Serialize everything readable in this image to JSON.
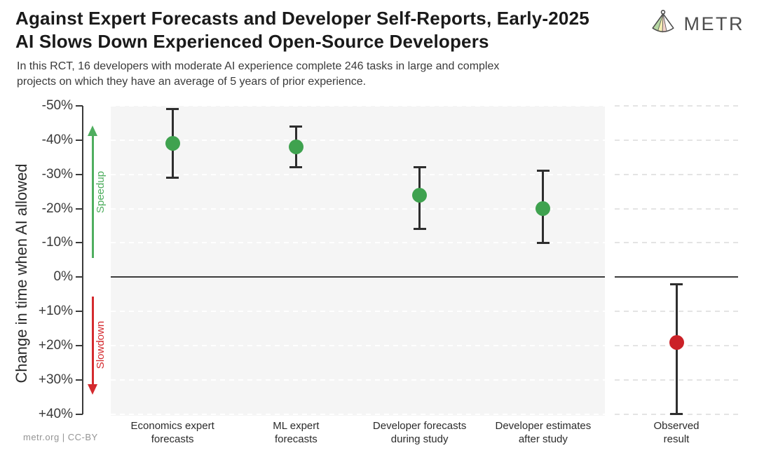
{
  "header": {
    "title": "Against Expert Forecasts and Developer Self-Reports, Early-2025\nAI Slows Down Experienced Open-Source Developers",
    "subtitle": "In this RCT, 16 developers with moderate AI experience complete 246 tasks in large and complex\nprojects on which they have an average of 5 years of prior experience.",
    "logo_text": "METR"
  },
  "footer": {
    "credit": "metr.org | CC-BY"
  },
  "chart_data": {
    "type": "scatter",
    "subtype": "point-estimates-with-error-bars",
    "y_axis_label": "Change in time when AI allowed",
    "y_ticks": [
      -50,
      -40,
      -30,
      -20,
      -10,
      0,
      10,
      20,
      30,
      40
    ],
    "y_tick_labels": [
      "-50%",
      "-40%",
      "-30%",
      "-20%",
      "-10%",
      "0%",
      "+10%",
      "+20%",
      "+30%",
      "+40%"
    ],
    "ylim_top_to_bottom": [
      -50,
      40
    ],
    "grid": "dashed horizontal gridlines every 10%, solid dark line at 0%",
    "legend_position": "none",
    "annotations": {
      "speedup_label": "Speedup",
      "slowdown_label": "Slowdown"
    },
    "points": [
      {
        "category": "Economics expert\nforecasts",
        "value": -39,
        "ci_low": -49,
        "ci_high": -29,
        "color": "#3fa24f",
        "panel": 0
      },
      {
        "category": "ML expert\nforecasts",
        "value": -38,
        "ci_low": -44,
        "ci_high": -32,
        "color": "#3fa24f",
        "panel": 0
      },
      {
        "category": "Developer forecasts\nduring study",
        "value": -24,
        "ci_low": -32,
        "ci_high": -14,
        "color": "#3fa24f",
        "panel": 0
      },
      {
        "category": "Developer estimates\nafter study",
        "value": -20,
        "ci_low": -31,
        "ci_high": -10,
        "color": "#3fa24f",
        "panel": 0
      },
      {
        "category": "Observed\nresult",
        "value": 19,
        "ci_low": 2,
        "ci_high": 40,
        "color": "#cb2127",
        "panel": 1
      }
    ],
    "colors": {
      "point_green": "#3fa24f",
      "point_red": "#cb2127",
      "speedup_arrow_green": "#4fae5f",
      "slowdown_arrow_red": "#d42a2e",
      "panel_bg": "#f5f5f5",
      "zero_line": "#3c3c3c"
    }
  }
}
